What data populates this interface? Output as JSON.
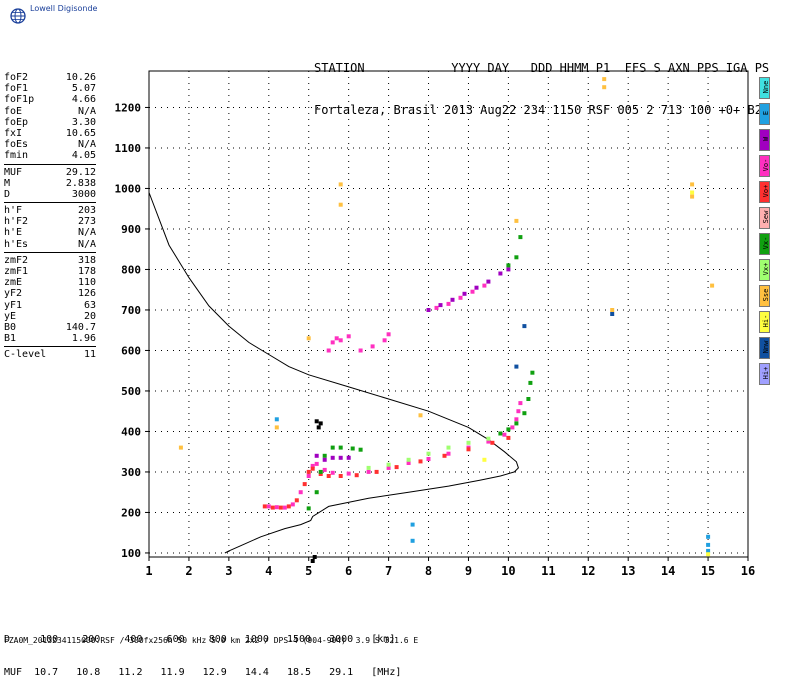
{
  "logo": {
    "text": "Lowell Digisonde",
    "icon": "globe-icon"
  },
  "header": {
    "line1": "STATION            YYYY DAY   DDD HHMM P1  FFS S AXN PPS IGA PS",
    "line2": "Fortaleza, Brasil 2013 Aug22 234 1150 RSF 005 2 713 100 +0+ B2"
  },
  "params": {
    "group1": [
      {
        "label": "foF2",
        "value": "10.26"
      },
      {
        "label": "foF1",
        "value": "5.07"
      },
      {
        "label": "foF1p",
        "value": "4.66"
      },
      {
        "label": "foE",
        "value": "N/A"
      },
      {
        "label": "foEp",
        "value": "3.30"
      },
      {
        "label": "fxI",
        "value": "10.65"
      },
      {
        "label": "foEs",
        "value": "N/A"
      },
      {
        "label": "fmin",
        "value": "4.05"
      }
    ],
    "group2": [
      {
        "label": "MUF",
        "value": "29.12"
      },
      {
        "label": "M",
        "value": "2.838"
      },
      {
        "label": "D",
        "value": "3000"
      }
    ],
    "group3": [
      {
        "label": "h'F",
        "value": "203"
      },
      {
        "label": "h'F2",
        "value": "273"
      },
      {
        "label": "h'E",
        "value": "N/A"
      },
      {
        "label": "h'Es",
        "value": "N/A"
      }
    ],
    "group4": [
      {
        "label": "zmF2",
        "value": "318"
      },
      {
        "label": "zmF1",
        "value": "178"
      },
      {
        "label": "zmE",
        "value": "110"
      },
      {
        "label": "yF2",
        "value": "126"
      },
      {
        "label": "yF1",
        "value": "63"
      },
      {
        "label": "yE",
        "value": "20"
      },
      {
        "label": "B0",
        "value": "140.7"
      },
      {
        "label": "B1",
        "value": "1.96"
      }
    ],
    "group5": [
      {
        "label": "C-level",
        "value": "11"
      }
    ]
  },
  "legend": [
    {
      "label": "Nne",
      "color": "#40e0e0"
    },
    {
      "label": "E",
      "color": "#20a0e0"
    },
    {
      "label": "W",
      "color": "#a000c0"
    },
    {
      "label": "Vo-",
      "color": "#ff30c0"
    },
    {
      "label": "Vo+",
      "color": "#ff3030"
    },
    {
      "label": "Sew",
      "color": "#ffb0b0"
    },
    {
      "label": "Vx-",
      "color": "#10a010"
    },
    {
      "label": "Vx+",
      "color": "#a0ff70"
    },
    {
      "label": "Sse",
      "color": "#ffc040"
    },
    {
      "label": "Hi-",
      "color": "#ffff40"
    },
    {
      "label": "Nnw",
      "color": "#1050a0"
    },
    {
      "label": "Hi+",
      "color": "#a0a0ff"
    }
  ],
  "muf_table": {
    "d_row": "D     100    200    400    600    800   1000   1500   3000   [km]",
    "muf_row": "MUF  10.7   10.8   11.2   11.9   12.9   14.4   18.5   29.1   [MHz]"
  },
  "footer": "FZA0M_2013234115000.RSF / 300fx256h 50 kHz 5.0 km 2x2 / DPS-4 (904-904)  3.9 S 321.6 E",
  "chart_data": {
    "type": "scatter",
    "title": "",
    "xlabel": "",
    "ylabel": "",
    "xlim": [
      1,
      16
    ],
    "ylim": [
      90,
      1290
    ],
    "x_ticks": [
      1,
      2,
      3,
      4,
      5,
      6,
      7,
      8,
      9,
      10,
      11,
      12,
      13,
      14,
      15,
      16
    ],
    "y_ticks": [
      100,
      200,
      300,
      400,
      500,
      600,
      700,
      800,
      900,
      1000,
      1100,
      1200
    ],
    "grid": true,
    "legend_placement": "right",
    "series": [
      {
        "color": "#000000",
        "kind": "line",
        "points": [
          [
            1,
            990
          ],
          [
            1.5,
            860
          ],
          [
            2,
            780
          ],
          [
            2.5,
            710
          ],
          [
            3,
            660
          ],
          [
            3.5,
            620
          ],
          [
            4,
            590
          ],
          [
            4.5,
            560
          ],
          [
            5,
            540
          ],
          [
            6,
            510
          ],
          [
            7,
            480
          ],
          [
            8,
            450
          ],
          [
            9,
            410
          ],
          [
            9.5,
            380
          ],
          [
            9.9,
            350
          ],
          [
            10.2,
            325
          ],
          [
            10.25,
            310
          ],
          [
            10.15,
            300
          ],
          [
            9.8,
            290
          ],
          [
            9.3,
            280
          ],
          [
            8.5,
            265
          ],
          [
            7.5,
            250
          ],
          [
            6.5,
            235
          ],
          [
            5.5,
            215
          ],
          [
            5.1,
            190
          ],
          [
            5.05,
            180
          ],
          [
            4.8,
            170
          ],
          [
            4.4,
            160
          ],
          [
            3.8,
            140
          ],
          [
            3.3,
            118
          ],
          [
            3.0,
            105
          ],
          [
            2.9,
            100
          ]
        ]
      },
      {
        "color": "#000000",
        "kind": "scatter",
        "points": [
          [
            5.2,
            425
          ],
          [
            5.3,
            420
          ],
          [
            5.25,
            410
          ],
          [
            5.1,
            80
          ],
          [
            5.15,
            90
          ]
        ]
      },
      {
        "color": "#ff30c0",
        "kind": "scatter",
        "points": [
          [
            4.0,
            215
          ],
          [
            4.2,
            213
          ],
          [
            4.4,
            212
          ],
          [
            4.6,
            220
          ],
          [
            4.8,
            250
          ],
          [
            5.0,
            290
          ],
          [
            5.1,
            315
          ],
          [
            5.2,
            320
          ],
          [
            5.4,
            305
          ],
          [
            5.6,
            298
          ],
          [
            6,
            296
          ],
          [
            6.5,
            300
          ],
          [
            7,
            310
          ],
          [
            7.5,
            322
          ],
          [
            8,
            332
          ],
          [
            8.5,
            345
          ],
          [
            9,
            360
          ],
          [
            9.5,
            375
          ],
          [
            9.9,
            392
          ],
          [
            10.1,
            410
          ],
          [
            10.2,
            430
          ],
          [
            10.25,
            450
          ],
          [
            10.3,
            470
          ]
        ]
      },
      {
        "color": "#ff3030",
        "kind": "scatter",
        "points": [
          [
            3.9,
            215
          ],
          [
            4.1,
            212
          ],
          [
            4.3,
            212
          ],
          [
            4.5,
            215
          ],
          [
            4.7,
            230
          ],
          [
            4.9,
            270
          ],
          [
            5.0,
            300
          ],
          [
            5.1,
            308
          ],
          [
            5.3,
            295
          ],
          [
            5.5,
            290
          ],
          [
            5.8,
            290
          ],
          [
            6.2,
            292
          ],
          [
            6.7,
            300
          ],
          [
            7.2,
            312
          ],
          [
            7.8,
            326
          ],
          [
            8.4,
            340
          ],
          [
            9.0,
            356
          ],
          [
            9.6,
            372
          ],
          [
            10.0,
            384
          ]
        ]
      },
      {
        "color": "#10a010",
        "kind": "scatter",
        "points": [
          [
            5.0,
            210
          ],
          [
            5.2,
            250
          ],
          [
            5.3,
            300
          ],
          [
            5.4,
            340
          ],
          [
            5.6,
            360
          ],
          [
            5.8,
            360
          ],
          [
            6.1,
            358
          ],
          [
            6.3,
            355
          ],
          [
            9.8,
            395
          ],
          [
            10.0,
            405
          ],
          [
            10.2,
            420
          ],
          [
            10.4,
            445
          ],
          [
            10.5,
            480
          ],
          [
            10.55,
            520
          ],
          [
            10.6,
            545
          ]
        ]
      },
      {
        "color": "#a0ff70",
        "kind": "scatter",
        "points": [
          [
            6.5,
            310
          ],
          [
            7,
            318
          ],
          [
            7.5,
            330
          ],
          [
            8,
            345
          ],
          [
            8.5,
            360
          ],
          [
            9,
            372
          ],
          [
            9.5,
            382
          ]
        ]
      },
      {
        "color": "#a000c0",
        "kind": "scatter",
        "points": [
          [
            5.2,
            340
          ],
          [
            5.4,
            330
          ],
          [
            5.6,
            335
          ],
          [
            5.8,
            335
          ],
          [
            6.0,
            335
          ],
          [
            8.0,
            700
          ],
          [
            8.3,
            712
          ],
          [
            8.6,
            725
          ],
          [
            8.9,
            740
          ],
          [
            9.2,
            755
          ],
          [
            9.5,
            770
          ],
          [
            9.8,
            790
          ],
          [
            10.0,
            800
          ]
        ]
      },
      {
        "color": "#ff30c0",
        "kind": "scatter",
        "points": [
          [
            5.5,
            600
          ],
          [
            5.6,
            620
          ],
          [
            5.7,
            630
          ],
          [
            5.8,
            625
          ],
          [
            6.0,
            635
          ],
          [
            6.3,
            600
          ],
          [
            6.6,
            610
          ],
          [
            6.9,
            625
          ],
          [
            7.0,
            640
          ],
          [
            8.2,
            705
          ],
          [
            8.5,
            715
          ],
          [
            8.8,
            730
          ],
          [
            9.1,
            745
          ],
          [
            9.4,
            760
          ]
        ]
      },
      {
        "color": "#10a010",
        "kind": "scatter",
        "points": [
          [
            10.0,
            810
          ],
          [
            10.2,
            830
          ],
          [
            10.3,
            880
          ]
        ]
      },
      {
        "color": "#ffc040",
        "kind": "scatter",
        "points": [
          [
            12.4,
            1270
          ],
          [
            12.4,
            1250
          ],
          [
            14.6,
            1010
          ],
          [
            14.6,
            980
          ],
          [
            12.6,
            700
          ],
          [
            10.2,
            920
          ],
          [
            5.8,
            960
          ],
          [
            5.8,
            1010
          ],
          [
            7.8,
            440
          ],
          [
            4.2,
            410
          ],
          [
            1.8,
            360
          ],
          [
            5.0,
            630
          ],
          [
            15.1,
            760
          ]
        ]
      },
      {
        "color": "#20a0e0",
        "kind": "scatter",
        "points": [
          [
            15.0,
            140
          ],
          [
            15.0,
            120
          ],
          [
            15.0,
            105
          ],
          [
            7.6,
            170
          ],
          [
            7.6,
            130
          ],
          [
            4.2,
            430
          ]
        ]
      },
      {
        "color": "#1050a0",
        "kind": "scatter",
        "points": [
          [
            12.6,
            690
          ],
          [
            10.4,
            660
          ],
          [
            10.2,
            560
          ]
        ]
      },
      {
        "color": "#ffff40",
        "kind": "scatter",
        "points": [
          [
            14.6,
            990
          ],
          [
            9.4,
            330
          ],
          [
            15.0,
            97
          ]
        ]
      }
    ]
  }
}
